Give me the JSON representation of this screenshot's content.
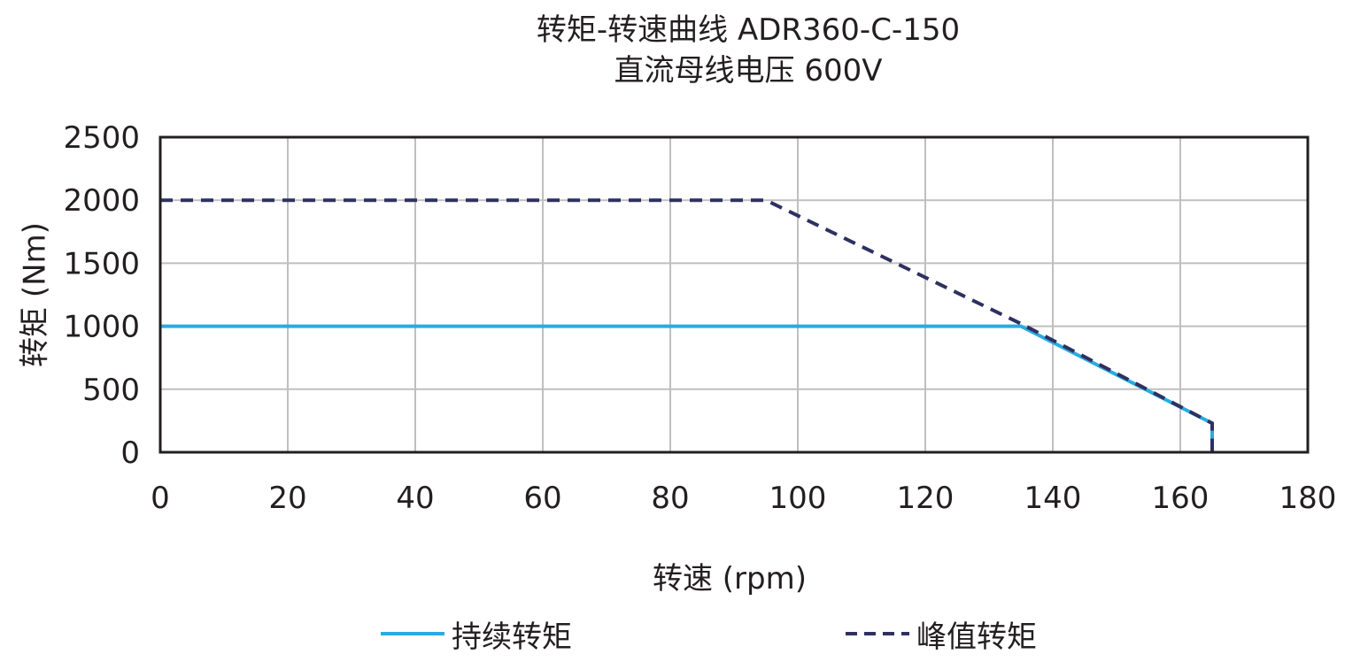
{
  "chart_data": {
    "type": "line",
    "title": "转矩-转速曲线 ADR360-C-150",
    "subtitle": "直流母线电压 600V",
    "xlabel": "转速 (rpm)",
    "ylabel": "转矩 (Nm)",
    "xlim": [
      0,
      180
    ],
    "ylim": [
      0,
      2500
    ],
    "xticks": [
      0,
      20,
      40,
      60,
      80,
      100,
      120,
      140,
      160,
      180
    ],
    "yticks": [
      0,
      500,
      1000,
      1500,
      2000,
      2500
    ],
    "grid": true,
    "legend_position": "bottom",
    "series": [
      {
        "name": "持续转矩",
        "style": "solid",
        "color": "#29abe2",
        "x": [
          0,
          135,
          165,
          165
        ],
        "y": [
          1000,
          1000,
          230,
          0
        ]
      },
      {
        "name": "峰值转矩",
        "style": "dashed",
        "color": "#2e3160",
        "x": [
          0,
          95,
          135,
          165,
          165
        ],
        "y": [
          2000,
          2000,
          1020,
          230,
          0
        ]
      }
    ]
  }
}
